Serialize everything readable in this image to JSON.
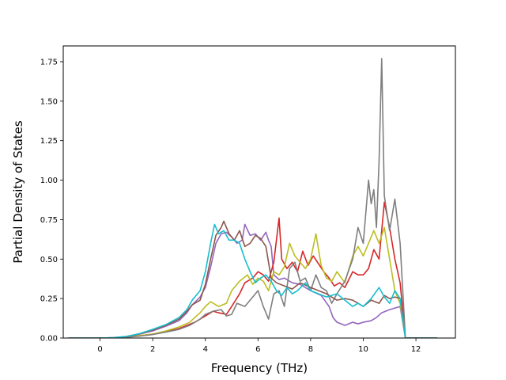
{
  "chart_data": {
    "type": "line",
    "title": "",
    "xlabel": "Frequency (THz)",
    "ylabel": "Partial Density of States",
    "xlim": [
      -1.4,
      13.5
    ],
    "ylim": [
      0,
      1.85
    ],
    "xticks": [
      0,
      2,
      4,
      6,
      8,
      10,
      12
    ],
    "xtick_labels": [
      "0",
      "2",
      "4",
      "6",
      "8",
      "10",
      "12"
    ],
    "yticks": [
      0.0,
      0.25,
      0.5,
      0.75,
      1.0,
      1.25,
      1.5,
      1.75
    ],
    "ytick_labels": [
      "0.00",
      "0.25",
      "0.50",
      "0.75",
      "1.00",
      "1.25",
      "1.50",
      "1.75"
    ],
    "grid": false,
    "legend": "none",
    "series": [
      {
        "color": "#9467bd",
        "points": [
          [
            -1.2,
            0
          ],
          [
            0,
            0
          ],
          [
            0.5,
            0.002
          ],
          [
            1,
            0.01
          ],
          [
            1.5,
            0.025
          ],
          [
            2,
            0.045
          ],
          [
            2.5,
            0.075
          ],
          [
            3,
            0.11
          ],
          [
            3.3,
            0.16
          ],
          [
            3.5,
            0.21
          ],
          [
            3.8,
            0.26
          ],
          [
            4,
            0.32
          ],
          [
            4.2,
            0.45
          ],
          [
            4.4,
            0.6
          ],
          [
            4.6,
            0.66
          ],
          [
            4.8,
            0.67
          ],
          [
            5,
            0.64
          ],
          [
            5.2,
            0.6
          ],
          [
            5.4,
            0.62
          ],
          [
            5.5,
            0.72
          ],
          [
            5.7,
            0.65
          ],
          [
            5.9,
            0.66
          ],
          [
            6.1,
            0.62
          ],
          [
            6.3,
            0.67
          ],
          [
            6.4,
            0.62
          ],
          [
            6.5,
            0.58
          ],
          [
            6.6,
            0.4
          ],
          [
            6.8,
            0.37
          ],
          [
            7,
            0.38
          ],
          [
            7.3,
            0.35
          ],
          [
            7.6,
            0.34
          ],
          [
            8,
            0.3
          ],
          [
            8.4,
            0.27
          ],
          [
            8.7,
            0.2
          ],
          [
            8.85,
            0.13
          ],
          [
            9,
            0.1
          ],
          [
            9.3,
            0.08
          ],
          [
            9.6,
            0.1
          ],
          [
            9.8,
            0.09
          ],
          [
            10,
            0.1
          ],
          [
            10.3,
            0.11
          ],
          [
            10.5,
            0.13
          ],
          [
            10.7,
            0.16
          ],
          [
            11,
            0.18
          ],
          [
            11.2,
            0.19
          ],
          [
            11.4,
            0.2
          ],
          [
            11.6,
            0
          ],
          [
            12.8,
            0
          ]
        ]
      },
      {
        "color": "#d62728",
        "points": [
          [
            -1.2,
            0
          ],
          [
            0,
            0
          ],
          [
            0.5,
            0.001
          ],
          [
            1,
            0.006
          ],
          [
            1.5,
            0.015
          ],
          [
            2,
            0.025
          ],
          [
            2.5,
            0.04
          ],
          [
            3,
            0.06
          ],
          [
            3.3,
            0.08
          ],
          [
            3.6,
            0.1
          ],
          [
            4,
            0.14
          ],
          [
            4.3,
            0.17
          ],
          [
            4.5,
            0.16
          ],
          [
            4.8,
            0.15
          ],
          [
            5,
            0.2
          ],
          [
            5.3,
            0.28
          ],
          [
            5.5,
            0.35
          ],
          [
            5.8,
            0.38
          ],
          [
            6,
            0.42
          ],
          [
            6.2,
            0.4
          ],
          [
            6.4,
            0.36
          ],
          [
            6.6,
            0.48
          ],
          [
            6.8,
            0.76
          ],
          [
            6.9,
            0.5
          ],
          [
            7.1,
            0.44
          ],
          [
            7.3,
            0.48
          ],
          [
            7.5,
            0.42
          ],
          [
            7.7,
            0.55
          ],
          [
            7.9,
            0.46
          ],
          [
            8.1,
            0.52
          ],
          [
            8.3,
            0.47
          ],
          [
            8.5,
            0.42
          ],
          [
            8.7,
            0.38
          ],
          [
            8.9,
            0.33
          ],
          [
            9.1,
            0.35
          ],
          [
            9.3,
            0.32
          ],
          [
            9.6,
            0.42
          ],
          [
            9.8,
            0.4
          ],
          [
            10,
            0.4
          ],
          [
            10.2,
            0.44
          ],
          [
            10.4,
            0.56
          ],
          [
            10.6,
            0.5
          ],
          [
            10.8,
            0.86
          ],
          [
            11,
            0.7
          ],
          [
            11.2,
            0.5
          ],
          [
            11.4,
            0.35
          ],
          [
            11.6,
            0
          ],
          [
            12.8,
            0
          ]
        ]
      },
      {
        "color": "#bcbd22",
        "points": [
          [
            -1.2,
            0
          ],
          [
            0,
            0
          ],
          [
            0.5,
            0.001
          ],
          [
            1,
            0.006
          ],
          [
            1.5,
            0.015
          ],
          [
            2,
            0.025
          ],
          [
            2.5,
            0.045
          ],
          [
            3,
            0.07
          ],
          [
            3.4,
            0.1
          ],
          [
            3.8,
            0.16
          ],
          [
            4,
            0.2
          ],
          [
            4.2,
            0.23
          ],
          [
            4.5,
            0.2
          ],
          [
            4.8,
            0.22
          ],
          [
            5,
            0.3
          ],
          [
            5.3,
            0.36
          ],
          [
            5.6,
            0.4
          ],
          [
            5.8,
            0.34
          ],
          [
            6,
            0.38
          ],
          [
            6.2,
            0.36
          ],
          [
            6.4,
            0.3
          ],
          [
            6.6,
            0.42
          ],
          [
            6.8,
            0.4
          ],
          [
            7,
            0.45
          ],
          [
            7.2,
            0.6
          ],
          [
            7.4,
            0.52
          ],
          [
            7.6,
            0.48
          ],
          [
            7.8,
            0.44
          ],
          [
            8,
            0.5
          ],
          [
            8.2,
            0.66
          ],
          [
            8.4,
            0.46
          ],
          [
            8.6,
            0.38
          ],
          [
            8.8,
            0.36
          ],
          [
            9,
            0.42
          ],
          [
            9.3,
            0.35
          ],
          [
            9.6,
            0.52
          ],
          [
            9.8,
            0.58
          ],
          [
            10,
            0.52
          ],
          [
            10.2,
            0.6
          ],
          [
            10.4,
            0.68
          ],
          [
            10.6,
            0.6
          ],
          [
            10.8,
            0.7
          ],
          [
            11,
            0.5
          ],
          [
            11.2,
            0.3
          ],
          [
            11.4,
            0.22
          ],
          [
            11.6,
            0
          ],
          [
            12.8,
            0
          ]
        ]
      },
      {
        "color": "#7f7f7f",
        "points": [
          [
            -1.2,
            0
          ],
          [
            0,
            0
          ],
          [
            0.5,
            0.001
          ],
          [
            1,
            0.005
          ],
          [
            1.5,
            0.012
          ],
          [
            2,
            0.022
          ],
          [
            2.5,
            0.038
          ],
          [
            3,
            0.055
          ],
          [
            3.4,
            0.08
          ],
          [
            3.8,
            0.12
          ],
          [
            4,
            0.15
          ],
          [
            4.3,
            0.17
          ],
          [
            4.6,
            0.18
          ],
          [
            4.8,
            0.14
          ],
          [
            5,
            0.15
          ],
          [
            5.2,
            0.22
          ],
          [
            5.5,
            0.2
          ],
          [
            5.8,
            0.26
          ],
          [
            6,
            0.3
          ],
          [
            6.2,
            0.2
          ],
          [
            6.4,
            0.12
          ],
          [
            6.6,
            0.28
          ],
          [
            6.8,
            0.3
          ],
          [
            7,
            0.2
          ],
          [
            7.2,
            0.44
          ],
          [
            7.4,
            0.48
          ],
          [
            7.6,
            0.36
          ],
          [
            7.8,
            0.38
          ],
          [
            8,
            0.3
          ],
          [
            8.2,
            0.4
          ],
          [
            8.4,
            0.32
          ],
          [
            8.6,
            0.3
          ],
          [
            8.8,
            0.22
          ],
          [
            9,
            0.28
          ],
          [
            9.3,
            0.36
          ],
          [
            9.6,
            0.5
          ],
          [
            9.8,
            0.7
          ],
          [
            10,
            0.6
          ],
          [
            10.2,
            1.0
          ],
          [
            10.3,
            0.85
          ],
          [
            10.4,
            0.94
          ],
          [
            10.5,
            0.7
          ],
          [
            10.6,
            1.12
          ],
          [
            10.7,
            1.77
          ],
          [
            10.8,
            0.9
          ],
          [
            11,
            0.68
          ],
          [
            11.2,
            0.88
          ],
          [
            11.4,
            0.6
          ],
          [
            11.6,
            0
          ],
          [
            12.8,
            0
          ]
        ]
      },
      {
        "color": "#8c564b",
        "points": [
          [
            -1.2,
            0
          ],
          [
            0,
            0
          ],
          [
            0.5,
            0.002
          ],
          [
            1,
            0.01
          ],
          [
            1.5,
            0.025
          ],
          [
            2,
            0.05
          ],
          [
            2.5,
            0.08
          ],
          [
            3,
            0.12
          ],
          [
            3.3,
            0.17
          ],
          [
            3.5,
            0.21
          ],
          [
            3.8,
            0.24
          ],
          [
            4,
            0.34
          ],
          [
            4.2,
            0.5
          ],
          [
            4.4,
            0.65
          ],
          [
            4.6,
            0.7
          ],
          [
            4.7,
            0.74
          ],
          [
            4.9,
            0.66
          ],
          [
            5.1,
            0.62
          ],
          [
            5.3,
            0.68
          ],
          [
            5.5,
            0.58
          ],
          [
            5.7,
            0.6
          ],
          [
            5.9,
            0.65
          ],
          [
            6.1,
            0.63
          ],
          [
            6.3,
            0.58
          ],
          [
            6.5,
            0.38
          ],
          [
            6.7,
            0.35
          ],
          [
            7,
            0.33
          ],
          [
            7.3,
            0.31
          ],
          [
            7.6,
            0.35
          ],
          [
            8,
            0.32
          ],
          [
            8.3,
            0.3
          ],
          [
            8.6,
            0.28
          ],
          [
            9,
            0.24
          ],
          [
            9.3,
            0.25
          ],
          [
            9.6,
            0.24
          ],
          [
            9.8,
            0.22
          ],
          [
            10,
            0.2
          ],
          [
            10.3,
            0.24
          ],
          [
            10.6,
            0.22
          ],
          [
            10.8,
            0.27
          ],
          [
            11,
            0.25
          ],
          [
            11.2,
            0.26
          ],
          [
            11.4,
            0.25
          ],
          [
            11.6,
            0
          ],
          [
            12.8,
            0
          ]
        ]
      },
      {
        "color": "#17becf",
        "points": [
          [
            -1.2,
            0
          ],
          [
            0,
            0
          ],
          [
            0.5,
            0.002
          ],
          [
            1,
            0.01
          ],
          [
            1.5,
            0.028
          ],
          [
            2,
            0.055
          ],
          [
            2.5,
            0.085
          ],
          [
            3,
            0.13
          ],
          [
            3.3,
            0.18
          ],
          [
            3.5,
            0.24
          ],
          [
            3.8,
            0.3
          ],
          [
            4,
            0.42
          ],
          [
            4.2,
            0.6
          ],
          [
            4.35,
            0.72
          ],
          [
            4.5,
            0.66
          ],
          [
            4.7,
            0.68
          ],
          [
            4.9,
            0.62
          ],
          [
            5.1,
            0.62
          ],
          [
            5.3,
            0.6
          ],
          [
            5.5,
            0.5
          ],
          [
            5.7,
            0.42
          ],
          [
            5.9,
            0.35
          ],
          [
            6.1,
            0.38
          ],
          [
            6.3,
            0.4
          ],
          [
            6.5,
            0.36
          ],
          [
            6.7,
            0.3
          ],
          [
            6.9,
            0.27
          ],
          [
            7.1,
            0.32
          ],
          [
            7.3,
            0.28
          ],
          [
            7.5,
            0.3
          ],
          [
            7.8,
            0.35
          ],
          [
            8,
            0.3
          ],
          [
            8.3,
            0.28
          ],
          [
            8.6,
            0.26
          ],
          [
            9,
            0.28
          ],
          [
            9.3,
            0.24
          ],
          [
            9.6,
            0.2
          ],
          [
            9.8,
            0.22
          ],
          [
            10,
            0.2
          ],
          [
            10.3,
            0.25
          ],
          [
            10.6,
            0.32
          ],
          [
            10.8,
            0.26
          ],
          [
            11,
            0.22
          ],
          [
            11.2,
            0.3
          ],
          [
            11.4,
            0.25
          ],
          [
            11.6,
            0
          ],
          [
            12.8,
            0
          ]
        ]
      }
    ]
  }
}
